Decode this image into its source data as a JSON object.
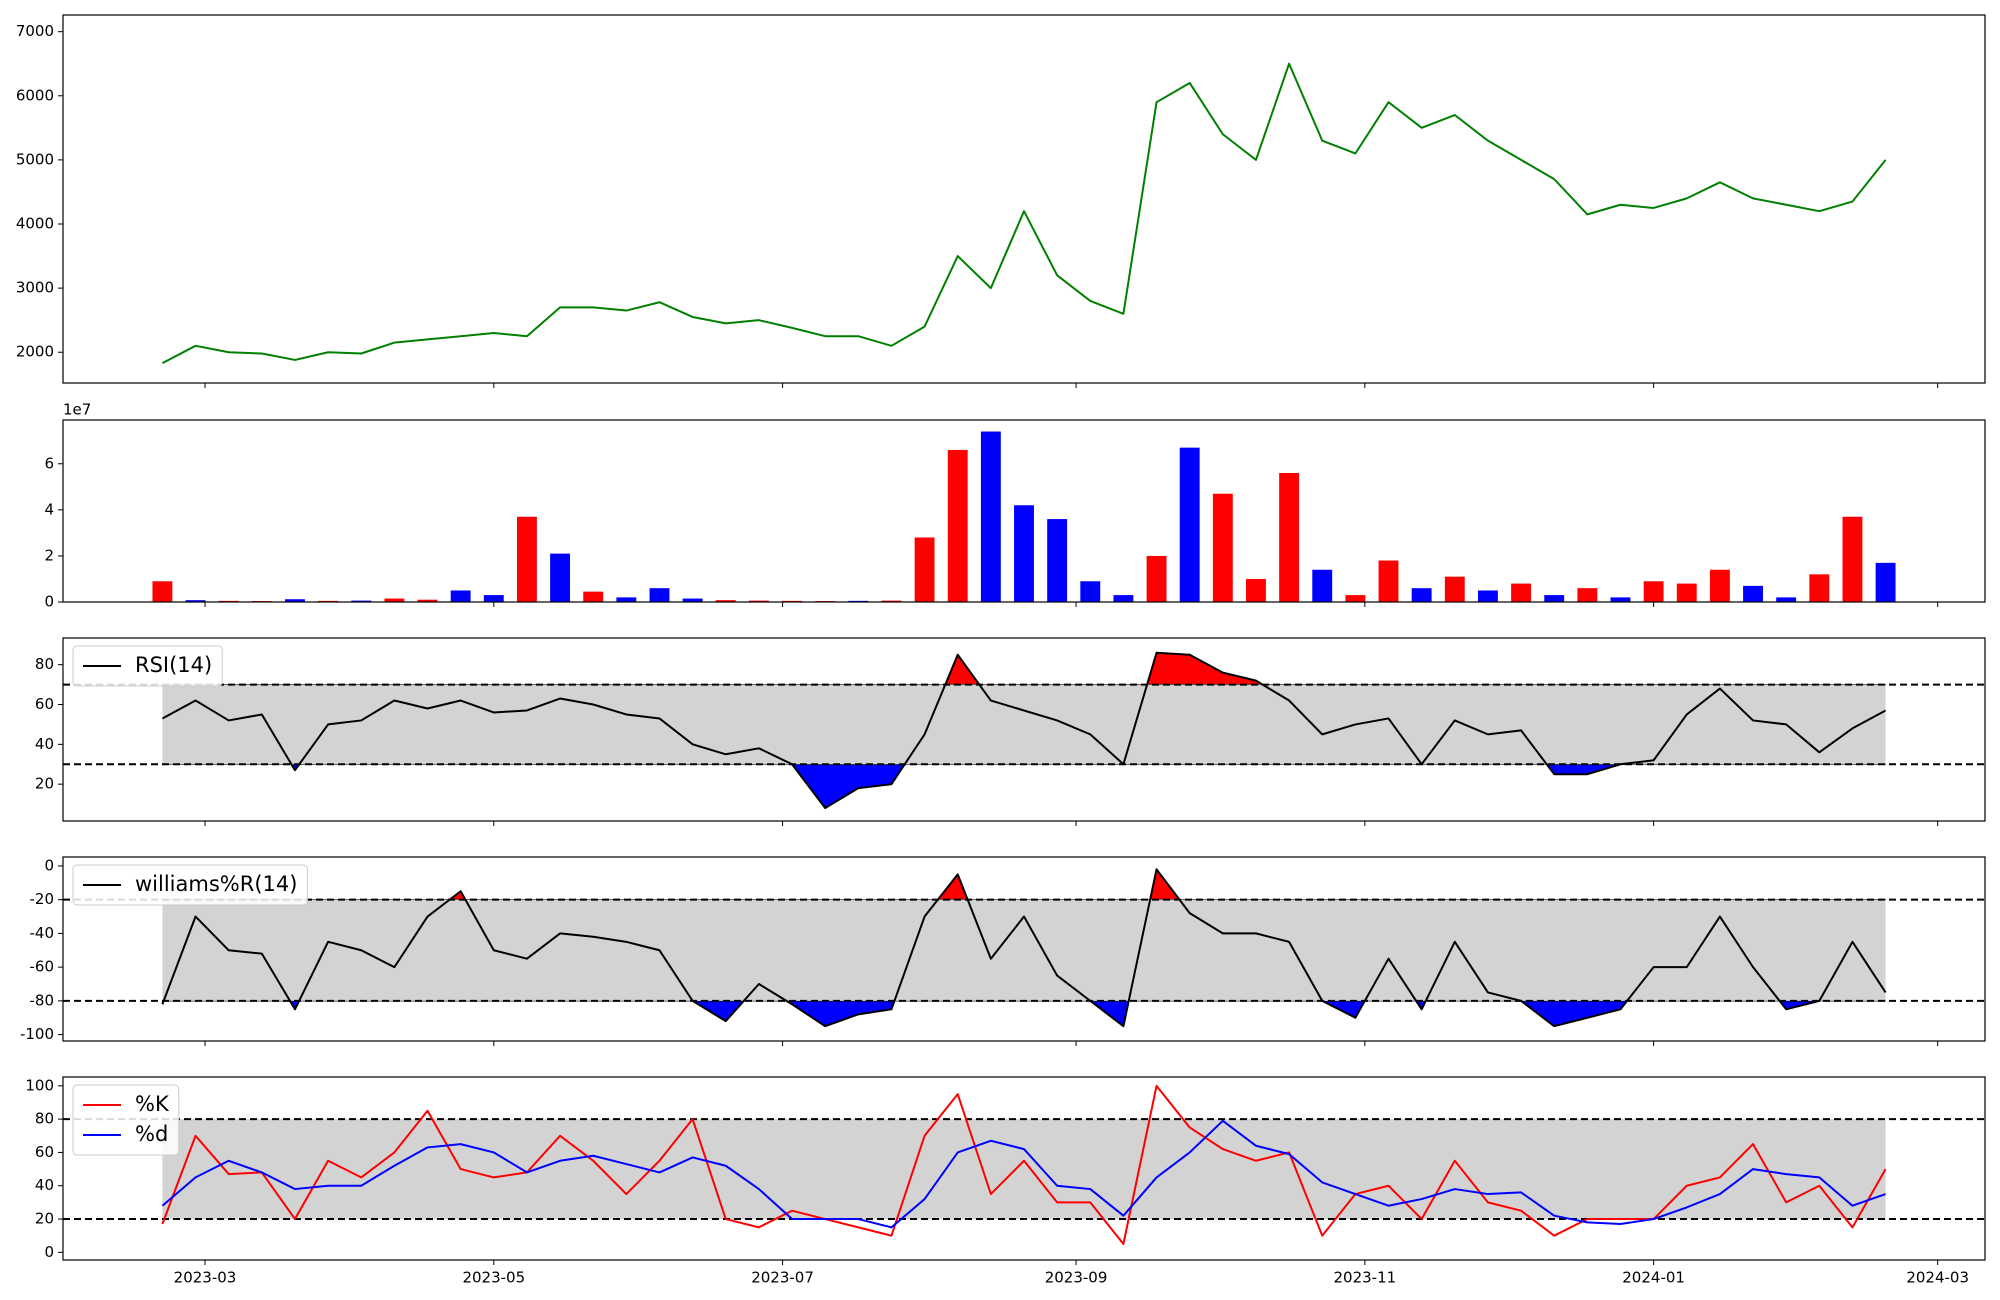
{
  "chart_data": [
    {
      "type": "line",
      "color": "green",
      "x": [
        "2023-02-20",
        "2023-02-27",
        "2023-03-06",
        "2023-03-13",
        "2023-03-20",
        "2023-03-27",
        "2023-04-03",
        "2023-04-10",
        "2023-04-17",
        "2023-04-24",
        "2023-05-01",
        "2023-05-08",
        "2023-05-15",
        "2023-05-22",
        "2023-05-29",
        "2023-06-05",
        "2023-06-12",
        "2023-06-19",
        "2023-06-26",
        "2023-07-03",
        "2023-07-10",
        "2023-07-17",
        "2023-07-24",
        "2023-07-31",
        "2023-08-07",
        "2023-08-14",
        "2023-08-21",
        "2023-08-28",
        "2023-09-04",
        "2023-09-11",
        "2023-09-18",
        "2023-09-25",
        "2023-10-02",
        "2023-10-09",
        "2023-10-16",
        "2023-10-23",
        "2023-10-30",
        "2023-11-06",
        "2023-11-13",
        "2023-11-20",
        "2023-11-27",
        "2023-12-04",
        "2023-12-11",
        "2023-12-18",
        "2023-12-25",
        "2024-01-01",
        "2024-01-08",
        "2024-01-15",
        "2024-01-22",
        "2024-01-29",
        "2024-02-05",
        "2024-02-12",
        "2024-02-19"
      ],
      "xlim": [
        "2023-01-30",
        "2024-03-11"
      ],
      "values": [
        1830,
        2100,
        2000,
        1980,
        1880,
        2000,
        1980,
        2150,
        2200,
        2250,
        2300,
        2250,
        2700,
        2700,
        2650,
        2780,
        2550,
        2450,
        2500,
        2380,
        2250,
        2250,
        2100,
        2400,
        3500,
        3000,
        4200,
        3200,
        2800,
        2600,
        5900,
        6200,
        5400,
        5000,
        6500,
        5300,
        5100,
        5900,
        5500,
        5700,
        5300,
        5000,
        4700,
        4150,
        4300,
        4250,
        4400,
        4650,
        4400,
        4300,
        4200,
        4350,
        5000
      ],
      "ylim": [
        1520,
        7260
      ],
      "yticks": [
        2000,
        3000,
        4000,
        5000,
        6000,
        7000
      ]
    },
    {
      "type": "bar",
      "offset_text": "1e7",
      "values": [
        9000000,
        800000,
        500000,
        400000,
        1200000,
        500000,
        600000,
        1500000,
        1000000,
        5000000,
        3000000,
        37000000,
        21000000,
        4500000,
        2000000,
        6000000,
        1500000,
        800000,
        600000,
        500000,
        400000,
        500000,
        600000,
        28000000,
        66000000,
        74000000,
        42000000,
        36000000,
        9000000,
        3000000,
        20000000,
        67000000,
        47000000,
        10000000,
        56000000,
        14000000,
        3000000,
        18000000,
        6000000,
        11000000,
        5000000,
        8000000,
        3000000,
        6000000,
        2000000,
        9000000,
        8000000,
        14000000,
        7000000,
        2000000,
        12000000,
        37000000,
        17000000
      ],
      "colors": [
        "red",
        "blue",
        "red",
        "red",
        "blue",
        "red",
        "blue",
        "red",
        "red",
        "blue",
        "blue",
        "red",
        "blue",
        "red",
        "blue",
        "blue",
        "blue",
        "red",
        "red",
        "red",
        "red",
        "blue",
        "red",
        "red",
        "red",
        "blue",
        "blue",
        "blue",
        "blue",
        "blue",
        "red",
        "blue",
        "red",
        "red",
        "red",
        "blue",
        "red",
        "red",
        "blue",
        "red",
        "blue",
        "red",
        "blue",
        "red",
        "blue",
        "red",
        "red",
        "red",
        "blue",
        "blue",
        "red",
        "red",
        "blue"
      ],
      "ylim": [
        0,
        79000000
      ],
      "yticks": [
        {
          "value": 0,
          "label": "0"
        },
        {
          "value": 20000000,
          "label": "2"
        },
        {
          "value": 40000000,
          "label": "4"
        },
        {
          "value": 60000000,
          "label": "6"
        }
      ]
    },
    {
      "type": "line",
      "legend": "upper left",
      "series": [
        {
          "name": "RSI(14)",
          "color": "black",
          "values": [
            53,
            62,
            52,
            55,
            27,
            50,
            52,
            62,
            58,
            62,
            56,
            57,
            63,
            60,
            55,
            53,
            40,
            35,
            38,
            30,
            8,
            18,
            20,
            45,
            85,
            62,
            57,
            52,
            45,
            30,
            86,
            85,
            76,
            72,
            62,
            45,
            50,
            53,
            30,
            52,
            45,
            47,
            25,
            25,
            30,
            32,
            55,
            68,
            52,
            50,
            36,
            48,
            57
          ]
        }
      ],
      "thresholds": [
        70,
        30
      ],
      "band_color": "#d3d3d3",
      "upper_fill": "red",
      "lower_fill": "blue",
      "ylim": [
        1.5,
        93.4
      ],
      "yticks": [
        20,
        40,
        60,
        80
      ]
    },
    {
      "type": "line",
      "legend": "upper left",
      "series": [
        {
          "name": "williams%R(14)",
          "color": "black",
          "values": [
            -82,
            -30,
            -50,
            -52,
            -85,
            -45,
            -50,
            -60,
            -30,
            -15,
            -50,
            -55,
            -40,
            -42,
            -45,
            -50,
            -80,
            -92,
            -70,
            -82,
            -95,
            -88,
            -85,
            -30,
            -5,
            -55,
            -30,
            -65,
            -80,
            -95,
            -2,
            -28,
            -40,
            -40,
            -45,
            -80,
            -90,
            -55,
            -85,
            -45,
            -75,
            -80,
            -95,
            -90,
            -85,
            -60,
            -60,
            -30,
            -60,
            -85,
            -80,
            -45,
            -75
          ]
        }
      ],
      "thresholds": [
        -20,
        -80
      ],
      "band_color": "#d3d3d3",
      "upper_fill": "red",
      "lower_fill": "blue",
      "ylim": [
        -103.8,
        5.3
      ],
      "yticks": [
        -100,
        -80,
        -60,
        -40,
        -20,
        0
      ]
    },
    {
      "type": "line",
      "legend": "upper left",
      "series": [
        {
          "name": "%K",
          "color": "red",
          "values": [
            17,
            70,
            47,
            48,
            20,
            55,
            45,
            60,
            85,
            50,
            45,
            48,
            70,
            55,
            35,
            55,
            80,
            20,
            15,
            25,
            20,
            15,
            10,
            70,
            95,
            35,
            55,
            30,
            30,
            5,
            100,
            75,
            62,
            55,
            60,
            10,
            35,
            40,
            20,
            55,
            30,
            25,
            10,
            20,
            20,
            20,
            40,
            45,
            65,
            30,
            40,
            15,
            50
          ]
        },
        {
          "name": "%d",
          "color": "blue",
          "values": [
            28,
            45,
            55,
            48,
            38,
            40,
            40,
            52,
            63,
            65,
            60,
            48,
            55,
            58,
            53,
            48,
            57,
            52,
            38,
            20,
            20,
            20,
            15,
            32,
            60,
            67,
            62,
            40,
            38,
            22,
            45,
            60,
            79,
            64,
            59,
            42,
            35,
            28,
            32,
            38,
            35,
            36,
            22,
            18,
            17,
            20,
            27,
            35,
            50,
            47,
            45,
            28,
            35
          ]
        }
      ],
      "thresholds": [
        80,
        20
      ],
      "band_color": "#d3d3d3",
      "ylim": [
        -4.6,
        105.3
      ],
      "yticks": [
        0,
        20,
        40,
        60,
        80,
        100
      ],
      "xticks": [
        {
          "value": "2023-03-01",
          "label": "2023-03"
        },
        {
          "value": "2023-05-01",
          "label": "2023-05"
        },
        {
          "value": "2023-07-01",
          "label": "2023-07"
        },
        {
          "value": "2023-09-01",
          "label": "2023-09"
        },
        {
          "value": "2023-11-01",
          "label": "2023-11"
        },
        {
          "value": "2024-01-01",
          "label": "2024-01"
        },
        {
          "value": "2024-03-01",
          "label": "2024-03"
        }
      ]
    }
  ]
}
